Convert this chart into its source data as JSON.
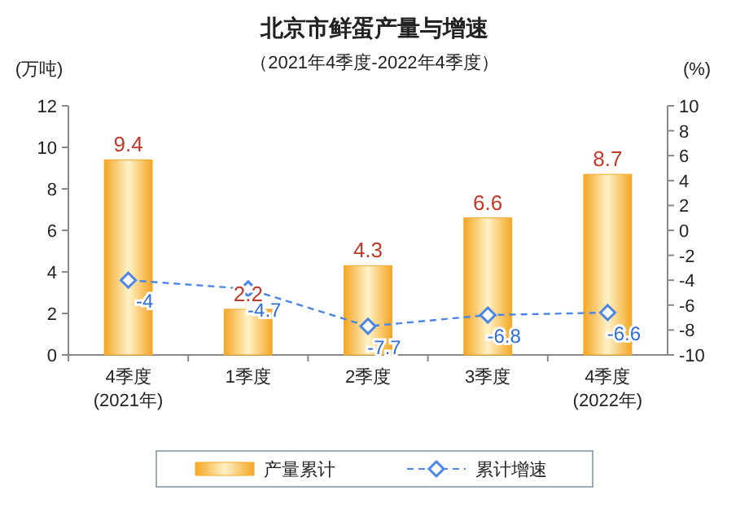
{
  "chart_data": {
    "type": "bar",
    "title": "北京市鲜蛋产量与增速",
    "subtitle": "（2021年4季度-2022年4季度）",
    "ylabel": "(万吨)",
    "y2label": "(%)",
    "categories": [
      "4季度\n(2021年)",
      "1季度",
      "2季度",
      "3季度",
      "4季度\n(2022年)"
    ],
    "series": [
      {
        "name": "产量累计",
        "color": "#f5a623",
        "values": [
          9.4,
          2.2,
          4.3,
          6.6,
          8.7
        ]
      },
      {
        "name": "累计增速",
        "type": "line",
        "axis": "y2",
        "color": "#4a86e8",
        "marker": "diamond",
        "line_style": "dashed",
        "values": [
          -4,
          -4.7,
          -7.7,
          -6.8,
          -6.6
        ]
      }
    ],
    "ylim": [
      0,
      12
    ],
    "yticks": [
      0,
      2,
      4,
      6,
      8,
      10,
      12
    ],
    "y2lim": [
      -10,
      10
    ],
    "y2ticks": [
      10,
      8,
      6,
      4,
      2,
      0,
      -2,
      -4,
      -6,
      -8,
      -10
    ],
    "data_labels": true,
    "grid": false,
    "legend": "bottom"
  }
}
